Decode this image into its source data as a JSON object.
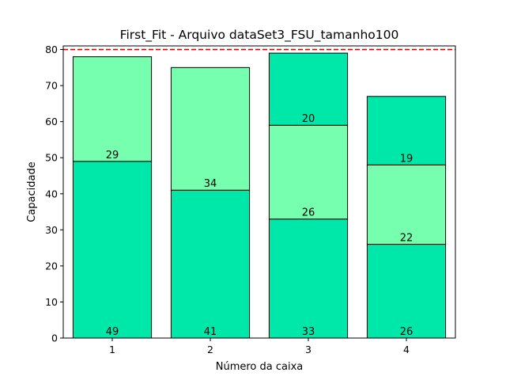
{
  "chart_data": {
    "type": "bar",
    "stacked": true,
    "title": "First_Fit - Arquivo dataSet3_FSU_tamanho100",
    "xlabel": "Número da caixa",
    "ylabel": "Capacidade",
    "categories": [
      "1",
      "2",
      "3",
      "4"
    ],
    "ylim": [
      0,
      81
    ],
    "yticks": [
      "0",
      "10",
      "20",
      "30",
      "40",
      "50",
      "60",
      "70",
      "80"
    ],
    "capacity_line": 80,
    "grid": false,
    "legend": "none",
    "colors": {
      "segment_a": "#00e8a9",
      "segment_b": "#76ffaf",
      "capacity_line": "#dd0000",
      "edge": "#000000"
    },
    "bins": [
      {
        "segments": [
          {
            "value": 49,
            "label": "49"
          },
          {
            "value": 29,
            "label": "29"
          }
        ]
      },
      {
        "segments": [
          {
            "value": 41,
            "label": "41"
          },
          {
            "value": 34,
            "label": "34"
          }
        ]
      },
      {
        "segments": [
          {
            "value": 33,
            "label": "33"
          },
          {
            "value": 26,
            "label": "26"
          },
          {
            "value": 20,
            "label": "20"
          }
        ]
      },
      {
        "segments": [
          {
            "value": 26,
            "label": "26"
          },
          {
            "value": 22,
            "label": "22"
          },
          {
            "value": 19,
            "label": "19"
          }
        ]
      }
    ]
  }
}
